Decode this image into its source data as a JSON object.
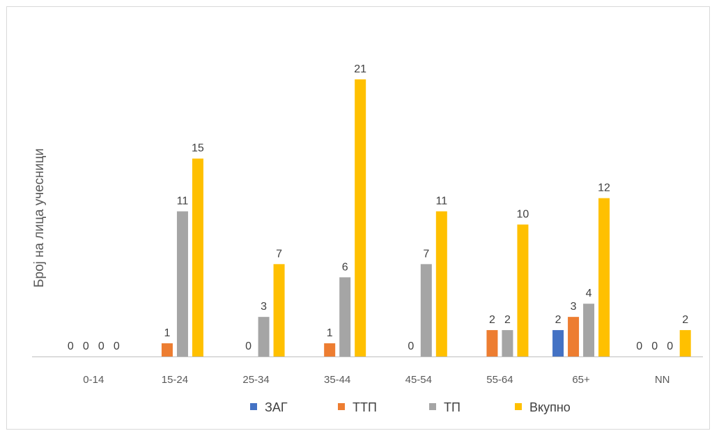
{
  "chart_data": {
    "type": "bar",
    "title": "",
    "xlabel": "",
    "ylabel": "Број на лица учесници",
    "categories": [
      "0-14",
      "15-24",
      "25-34",
      "35-44",
      "45-54",
      "55-64",
      "65+",
      "NN"
    ],
    "series": [
      {
        "name": "ЗАГ",
        "color": "#4472c4",
        "values": [
          0,
          0,
          0,
          0,
          0,
          0,
          2,
          0
        ],
        "labels": [
          true,
          false,
          false,
          false,
          false,
          false,
          true,
          true
        ]
      },
      {
        "name": "ТТП",
        "color": "#ed7d31",
        "values": [
          0,
          1,
          0,
          1,
          0,
          2,
          3,
          0
        ],
        "labels": [
          true,
          true,
          true,
          true,
          true,
          true,
          true,
          true
        ]
      },
      {
        "name": "ТП",
        "color": "#a5a5a5",
        "values": [
          0,
          11,
          3,
          6,
          7,
          2,
          4,
          0
        ],
        "labels": [
          true,
          true,
          true,
          true,
          true,
          true,
          true,
          true
        ]
      },
      {
        "name": "Вкупно",
        "color": "#ffc000",
        "values": [
          0,
          15,
          7,
          21,
          11,
          10,
          12,
          2
        ],
        "labels": [
          true,
          true,
          true,
          true,
          true,
          true,
          true,
          true
        ]
      }
    ],
    "ylim": [
      0,
      21
    ],
    "grid": false,
    "legend_position": "bottom"
  }
}
